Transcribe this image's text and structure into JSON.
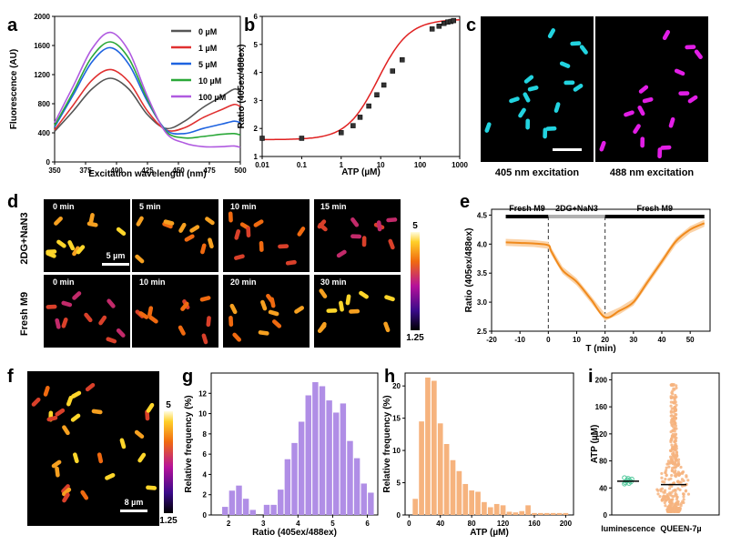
{
  "figure": {
    "panel_letters": [
      "a",
      "b",
      "c",
      "d",
      "e",
      "f",
      "g",
      "h",
      "i"
    ],
    "colors": {
      "cyan": "#22d3df",
      "magenta": "#e21ee6",
      "orange": "#f08a1c",
      "purple": "#b08ee6",
      "salmon": "#f6b37e",
      "green": "#4fc79a",
      "red": "#e02020"
    }
  },
  "panels": {
    "c": {
      "labels": [
        "405 nm excitation",
        "488 nm excitation"
      ]
    },
    "d": {
      "row_labels": [
        "2DG+NaN3",
        "Fresh M9"
      ],
      "row1_times": [
        "0 min",
        "5 min",
        "10 min",
        "15 min"
      ],
      "row2_times": [
        "0 min",
        "10 min",
        "20 min",
        "30 min"
      ],
      "scalebar_label": "5 µm",
      "colorbar_max": "5",
      "colorbar_min": "1.25"
    },
    "f": {
      "scalebar_label": "8 µm",
      "colorbar_max": "5",
      "colorbar_min": "1.25"
    }
  },
  "chart_data": [
    {
      "panel": "a",
      "type": "line",
      "xlabel": "Excitation wavelength (nm)",
      "ylabel": "Fluorescence (AU)",
      "xlim": [
        350,
        500
      ],
      "ylim": [
        0,
        2000
      ],
      "xticks": [
        350,
        375,
        400,
        425,
        450,
        475,
        500
      ],
      "yticks": [
        0,
        400,
        800,
        1200,
        1600,
        2000
      ],
      "x": [
        350,
        365,
        380,
        395,
        410,
        425,
        440,
        455,
        470,
        485,
        495,
        500
      ],
      "series": [
        {
          "name": "0 µM",
          "color": "#555555",
          "values": [
            420,
            700,
            1000,
            1150,
            1000,
            650,
            460,
            560,
            750,
            900,
            1000,
            970
          ]
        },
        {
          "name": "1 µM",
          "color": "#e03030",
          "values": [
            440,
            780,
            1120,
            1270,
            1100,
            700,
            440,
            470,
            610,
            720,
            790,
            760
          ]
        },
        {
          "name": "5 µM",
          "color": "#1e63e0",
          "values": [
            480,
            920,
            1370,
            1570,
            1340,
            830,
            440,
            390,
            460,
            520,
            560,
            540
          ]
        },
        {
          "name": "10 µM",
          "color": "#2aa838",
          "values": [
            500,
            960,
            1440,
            1650,
            1420,
            860,
            420,
            330,
            350,
            380,
            390,
            370
          ]
        },
        {
          "name": "100 µM",
          "color": "#b05ae0",
          "values": [
            540,
            1040,
            1550,
            1780,
            1520,
            900,
            400,
            260,
            210,
            210,
            220,
            200
          ]
        }
      ]
    },
    {
      "panel": "b",
      "type": "scatter",
      "xlabel": "ATP (µM)",
      "ylabel": "Ratio (405ex/488ex)",
      "xscale": "log",
      "xlim": [
        0.01,
        1000
      ],
      "ylim": [
        1,
        6
      ],
      "xtick_labels": [
        "0.01",
        "0.1",
        "1",
        "10",
        "100",
        "1000"
      ],
      "yticks": [
        1,
        2,
        3,
        4,
        5,
        6
      ],
      "x": [
        0.01,
        0.1,
        1,
        2,
        3,
        5,
        8,
        12,
        20,
        35,
        200,
        300,
        400,
        500,
        600,
        700
      ],
      "y": [
        1.65,
        1.65,
        1.85,
        2.1,
        2.4,
        2.8,
        3.2,
        3.55,
        4.05,
        4.45,
        5.55,
        5.65,
        5.75,
        5.8,
        5.82,
        5.85
      ]
    },
    {
      "panel": "e",
      "type": "line",
      "xlabel": "T (min)",
      "ylabel": "Ratio (405ex/488ex)",
      "xlim": [
        -20,
        57
      ],
      "ylim": [
        2.5,
        4.6
      ],
      "xticks": [
        -20,
        -10,
        0,
        10,
        20,
        30,
        40,
        50
      ],
      "yticks": [
        2.5,
        3.0,
        3.5,
        4.0,
        4.5
      ],
      "x": [
        -15,
        -10,
        -5,
        0,
        1,
        5,
        10,
        15,
        20,
        25,
        30,
        35,
        40,
        45,
        50,
        55
      ],
      "y": [
        4.03,
        4.02,
        4.01,
        3.98,
        3.88,
        3.55,
        3.35,
        3.05,
        2.74,
        2.85,
        3.0,
        3.35,
        3.7,
        4.05,
        4.25,
        4.36
      ],
      "bars": [
        "Fresh M9",
        "2DG+NaN3",
        "Fresh M9"
      ],
      "dashed_lines_at": [
        0,
        20
      ]
    },
    {
      "panel": "g",
      "type": "bar",
      "xlabel": "Ratio (405ex/488ex)",
      "ylabel": "Relative frequency (%)",
      "xlim": [
        1.5,
        6.3
      ],
      "ylim": [
        0,
        14
      ],
      "xticks": [
        2,
        3,
        4,
        5,
        6
      ],
      "yticks": [
        0,
        2,
        4,
        6,
        8,
        10,
        12
      ],
      "bin_width": 0.2,
      "bin_starts": [
        1.6,
        1.8,
        2.0,
        2.2,
        2.4,
        2.6,
        2.8,
        3.0,
        3.2,
        3.4,
        3.6,
        3.8,
        4.0,
        4.2,
        4.4,
        4.6,
        4.8,
        5.0,
        5.2,
        5.4,
        5.6,
        5.8,
        6.0
      ],
      "values": [
        0,
        0.8,
        2.4,
        2.9,
        1.6,
        0.5,
        0,
        1.0,
        1.0,
        2.5,
        5.5,
        7.1,
        9.2,
        11.8,
        13.1,
        12.7,
        11.3,
        10.1,
        11.0,
        7.3,
        5.6,
        3.1,
        2.2
      ]
    },
    {
      "panel": "h",
      "type": "bar",
      "xlabel": "ATP (µM)",
      "ylabel": "Relative frequency (%)",
      "xlim": [
        -5,
        210
      ],
      "ylim": [
        0,
        22
      ],
      "xticks": [
        0,
        40,
        80,
        120,
        160,
        200
      ],
      "yticks": [
        0,
        5,
        10,
        15,
        20
      ],
      "bin_width": 8,
      "bin_starts": [
        4,
        12,
        20,
        28,
        36,
        44,
        52,
        60,
        68,
        76,
        84,
        92,
        100,
        108,
        116,
        124,
        132,
        140,
        148,
        156,
        164,
        172,
        180,
        188,
        196
      ],
      "values": [
        2.5,
        14.5,
        21.3,
        20.8,
        14.2,
        11.0,
        8.5,
        6.8,
        4.8,
        3.8,
        3.6,
        2.0,
        1.2,
        1.7,
        1.5,
        0.5,
        0.4,
        0.6,
        1.5,
        0.3,
        0.3,
        0.3,
        0.3,
        0.3,
        0.3
      ]
    },
    {
      "panel": "i",
      "type": "scatter",
      "ylabel": "ATP (µM)",
      "categories": [
        "luminescence",
        "QUEEN-7µ"
      ],
      "ylim": [
        0,
        210
      ],
      "yticks": [
        0,
        40,
        80,
        120,
        160,
        200
      ],
      "means": [
        50,
        45
      ],
      "luminescence_values": [
        46,
        48,
        50,
        52,
        54,
        47,
        51,
        49,
        53,
        55
      ],
      "queen_summary": {
        "min": 5,
        "max": 195,
        "median": 42
      }
    }
  ]
}
